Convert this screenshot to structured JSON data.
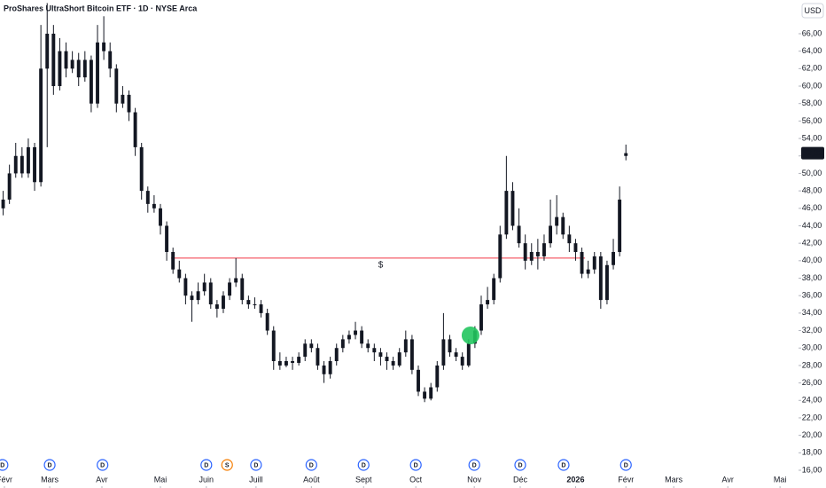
{
  "chart_data": {
    "type": "candlestick",
    "title": "ProShares UltraShort Bitcoin ETF · 1D · NYSE Arca",
    "currency": "USD",
    "color": "#131722",
    "ylim": [
      16,
      69.86
    ],
    "xlim": [
      -0.5,
      126.3
    ],
    "yticks": [
      {
        "value": 16,
        "label": "16,00"
      },
      {
        "value": 18,
        "label": "18,00"
      },
      {
        "value": 20,
        "label": "20,00"
      },
      {
        "value": 22,
        "label": "22,00"
      },
      {
        "value": 24,
        "label": "24,00"
      },
      {
        "value": 26,
        "label": "26,00"
      },
      {
        "value": 28,
        "label": "28,00"
      },
      {
        "value": 30,
        "label": "30,00"
      },
      {
        "value": 32,
        "label": "32,00"
      },
      {
        "value": 34,
        "label": "34,00"
      },
      {
        "value": 36,
        "label": "36,00"
      },
      {
        "value": 38,
        "label": "38,00"
      },
      {
        "value": 40,
        "label": "40,00"
      },
      {
        "value": 42,
        "label": "42,00"
      },
      {
        "value": 44,
        "label": "44,00"
      },
      {
        "value": 46,
        "label": "46,00"
      },
      {
        "value": 48,
        "label": "48,00"
      },
      {
        "value": 50,
        "label": "50,00"
      },
      {
        "value": 52,
        "label": "52,00"
      },
      {
        "value": 54,
        "label": "54,00"
      },
      {
        "value": 56,
        "label": "56,00"
      },
      {
        "value": 58,
        "label": "58,00"
      },
      {
        "value": 60,
        "label": "60,00"
      },
      {
        "value": 62,
        "label": "62,00"
      },
      {
        "value": 64,
        "label": "64,00"
      },
      {
        "value": 66,
        "label": "66,00"
      }
    ],
    "xticks": [
      {
        "value": 0.2,
        "label": "Févr"
      },
      {
        "value": 7.4,
        "label": "Mars"
      },
      {
        "value": 15.7,
        "label": "Avr"
      },
      {
        "value": 25,
        "label": "Mai"
      },
      {
        "value": 32.3,
        "label": "Juin"
      },
      {
        "value": 40.2,
        "label": "Juill"
      },
      {
        "value": 49,
        "label": "Août"
      },
      {
        "value": 57.3,
        "label": "Sept"
      },
      {
        "value": 65.6,
        "label": "Oct"
      },
      {
        "value": 74.9,
        "label": "Nov"
      },
      {
        "value": 82.2,
        "label": "Déc"
      },
      {
        "value": 91,
        "label": "2026",
        "bold": true
      },
      {
        "value": 99,
        "label": "Févr"
      },
      {
        "value": 106.6,
        "label": "Mars"
      },
      {
        "value": 115.2,
        "label": "Avr"
      },
      {
        "value": 123.5,
        "label": "Mai"
      }
    ],
    "events": [
      {
        "x": -0.1,
        "label": "D",
        "color": "#2962ff"
      },
      {
        "x": 7.4,
        "label": "D",
        "color": "#2962ff"
      },
      {
        "x": 15.8,
        "label": "D",
        "color": "#2962ff"
      },
      {
        "x": 32.3,
        "label": "D",
        "color": "#2962ff"
      },
      {
        "x": 35.6,
        "label": "S",
        "color": "#f57c00"
      },
      {
        "x": 40.2,
        "label": "D",
        "color": "#2962ff"
      },
      {
        "x": 49,
        "label": "D",
        "color": "#2962ff"
      },
      {
        "x": 57.3,
        "label": "D",
        "color": "#2962ff"
      },
      {
        "x": 65.6,
        "label": "D",
        "color": "#2962ff"
      },
      {
        "x": 74.9,
        "label": "D",
        "color": "#2962ff"
      },
      {
        "x": 82.2,
        "label": "D",
        "color": "#2962ff"
      },
      {
        "x": 89.1,
        "label": "D",
        "color": "#2962ff"
      },
      {
        "x": 99,
        "label": "D",
        "color": "#2962ff"
      }
    ],
    "last_price": {
      "value": 52.32,
      "label": "52,32"
    },
    "alert": {
      "price": 40.3,
      "x": [
        26.7,
        92.5
      ],
      "label": "$",
      "color": "#f23645"
    },
    "highlight": {
      "x": 74.3,
      "y": 31.45,
      "color": "#22c55e"
    },
    "ohlc": [
      [
        46,
        48,
        45.2,
        47
      ],
      [
        47,
        51,
        46.5,
        50
      ],
      [
        50,
        53.5,
        49.5,
        52
      ],
      [
        52,
        53,
        49.5,
        50
      ],
      [
        50,
        54,
        49.5,
        53
      ],
      [
        53,
        53.5,
        48,
        49
      ],
      [
        49,
        67,
        48.5,
        62
      ],
      [
        62,
        69.5,
        53,
        66
      ],
      [
        66,
        67,
        59,
        60
      ],
      [
        60,
        65.5,
        59.5,
        64
      ],
      [
        64,
        65,
        61,
        62
      ],
      [
        62,
        64,
        61.5,
        63
      ],
      [
        63,
        63.8,
        60,
        61
      ],
      [
        61,
        64,
        60.5,
        63
      ],
      [
        63,
        63.5,
        57,
        58
      ],
      [
        58,
        67,
        57.5,
        65
      ],
      [
        65,
        68,
        63,
        64
      ],
      [
        64,
        65,
        61,
        62
      ],
      [
        62,
        62.5,
        57,
        58
      ],
      [
        58,
        60,
        57.5,
        59
      ],
      [
        59,
        59.5,
        56,
        57
      ],
      [
        57,
        57.5,
        52,
        53
      ],
      [
        53,
        53.5,
        47,
        48
      ],
      [
        48,
        48.5,
        45.5,
        46.5
      ],
      [
        46.5,
        47.5,
        45.5,
        46
      ],
      [
        46,
        46.5,
        43,
        44
      ],
      [
        44,
        44.5,
        40,
        41
      ],
      [
        41,
        41.5,
        38.5,
        39
      ],
      [
        39,
        40,
        37.5,
        38
      ],
      [
        38,
        38.5,
        35,
        36
      ],
      [
        36,
        36.5,
        33,
        35.5
      ],
      [
        35.5,
        37.5,
        35,
        36.5
      ],
      [
        36.5,
        38.5,
        36,
        37.5
      ],
      [
        37.5,
        38,
        34.5,
        35
      ],
      [
        35,
        35.5,
        33.5,
        34.5
      ],
      [
        34.5,
        36.5,
        34,
        36
      ],
      [
        36,
        38,
        35.5,
        37.5
      ],
      [
        37.5,
        40.3,
        37,
        38
      ],
      [
        38,
        38.5,
        35,
        35.5
      ],
      [
        35.5,
        36,
        34.5,
        35
      ],
      [
        35,
        35.8,
        34.5,
        35
      ],
      [
        35,
        35.5,
        33.5,
        34
      ],
      [
        34,
        34.5,
        31.5,
        32
      ],
      [
        32,
        32.5,
        27.5,
        28.5
      ],
      [
        28.5,
        29.5,
        27.5,
        28
      ],
      [
        28,
        29,
        27.8,
        28.5
      ],
      [
        28.5,
        29,
        27.5,
        28.3
      ],
      [
        28.3,
        29.5,
        28,
        29
      ],
      [
        29,
        31,
        28.5,
        30.5
      ],
      [
        30.5,
        31,
        29.5,
        30
      ],
      [
        30,
        30.5,
        27.5,
        28
      ],
      [
        28,
        28.5,
        26,
        27
      ],
      [
        27,
        29,
        26.5,
        28.5
      ],
      [
        28.5,
        30.5,
        28,
        30
      ],
      [
        30,
        31.5,
        29.5,
        31
      ],
      [
        31,
        32,
        30.5,
        31.5
      ],
      [
        31.5,
        33,
        31,
        32
      ],
      [
        32,
        32.5,
        30,
        30.5
      ],
      [
        30.5,
        31,
        29.5,
        30
      ],
      [
        30,
        30.5,
        28.5,
        29.5
      ],
      [
        29.5,
        30,
        28,
        29
      ],
      [
        29,
        29.5,
        27.5,
        28.5
      ],
      [
        28.5,
        29,
        27.5,
        28
      ],
      [
        28,
        30,
        27.8,
        29.5
      ],
      [
        29.5,
        32,
        29,
        31
      ],
      [
        31,
        31.5,
        27,
        27.5
      ],
      [
        27.5,
        28,
        24.5,
        25
      ],
      [
        25,
        25.5,
        23.8,
        24.2
      ],
      [
        24.2,
        26,
        24,
        25.5
      ],
      [
        25.5,
        28.5,
        25,
        28
      ],
      [
        28,
        34,
        27.5,
        31
      ],
      [
        31,
        31.5,
        29,
        29.5
      ],
      [
        29.5,
        30,
        28.5,
        29
      ],
      [
        29,
        29.5,
        27.5,
        28
      ],
      [
        28,
        31,
        27.8,
        30.5
      ],
      [
        30.5,
        32.5,
        30,
        32
      ],
      [
        32,
        36,
        31.5,
        35
      ],
      [
        35,
        37,
        34.5,
        35.5
      ],
      [
        35.5,
        38.5,
        35,
        38
      ],
      [
        38,
        44,
        37.5,
        43
      ],
      [
        43,
        52,
        42.5,
        48
      ],
      [
        48,
        49,
        43.5,
        44
      ],
      [
        44,
        46,
        41.5,
        42
      ],
      [
        42,
        43,
        39,
        40
      ],
      [
        40,
        42,
        39.5,
        41
      ],
      [
        41,
        42.5,
        39,
        40.5
      ],
      [
        40.5,
        43,
        40,
        42
      ],
      [
        42,
        47,
        41.5,
        44
      ],
      [
        44,
        47.5,
        43,
        45
      ],
      [
        45,
        45.5,
        42.5,
        43
      ],
      [
        43,
        44,
        41,
        42
      ],
      [
        42,
        42.5,
        40,
        41
      ],
      [
        41,
        41.5,
        38,
        38.5
      ],
      [
        38.5,
        40,
        38,
        39
      ],
      [
        39,
        41,
        38.5,
        40.5
      ],
      [
        40.5,
        41,
        34.5,
        35.5
      ],
      [
        35.5,
        40,
        35,
        39.5
      ],
      [
        39.5,
        42.5,
        39,
        41
      ],
      [
        41,
        48.5,
        40.5,
        47
      ],
      [
        52,
        53.3,
        51.5,
        52.32
      ]
    ]
  }
}
